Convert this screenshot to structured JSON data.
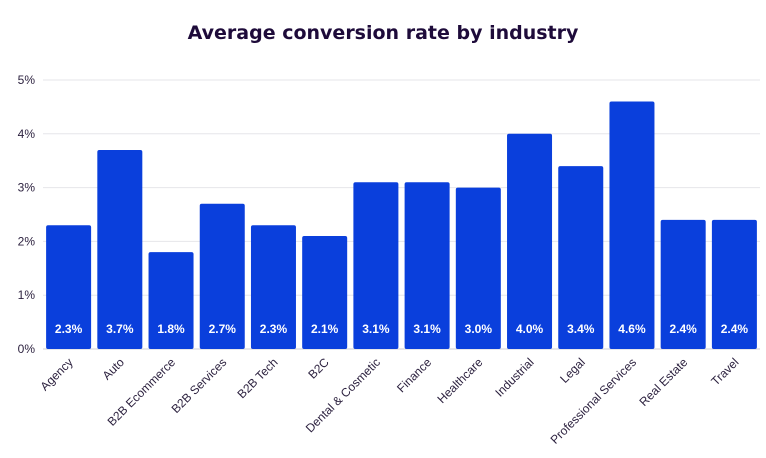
{
  "chart_data": {
    "type": "bar",
    "title": "Average conversion rate by industry",
    "xlabel": "",
    "ylabel": "",
    "ylim": [
      0,
      5
    ],
    "yticks": [
      0,
      1,
      2,
      3,
      4,
      5
    ],
    "ytick_labels": [
      "0%",
      "1%",
      "2%",
      "3%",
      "4%",
      "5%"
    ],
    "grid": true,
    "legend": "none",
    "bar_color": "#0a3fdc",
    "categories": [
      "Agency",
      "Auto",
      "B2B Ecommerce",
      "B2B Services",
      "B2B Tech",
      "B2C",
      "Dental & Cosmetic",
      "Finance",
      "Healthcare",
      "Industrial",
      "Legal",
      "Professional Services",
      "Real Estate",
      "Travel"
    ],
    "values": [
      2.3,
      3.7,
      1.8,
      2.7,
      2.3,
      2.1,
      3.1,
      3.1,
      3.0,
      4.0,
      3.4,
      4.6,
      2.4,
      2.4
    ],
    "data_labels": [
      "2.3%",
      "3.7%",
      "1.8%",
      "2.7%",
      "2.3%",
      "2.1%",
      "3.1%",
      "3.1%",
      "3.0%",
      "4.0%",
      "3.4%",
      "4.6%",
      "2.4%",
      "2.4%"
    ]
  }
}
